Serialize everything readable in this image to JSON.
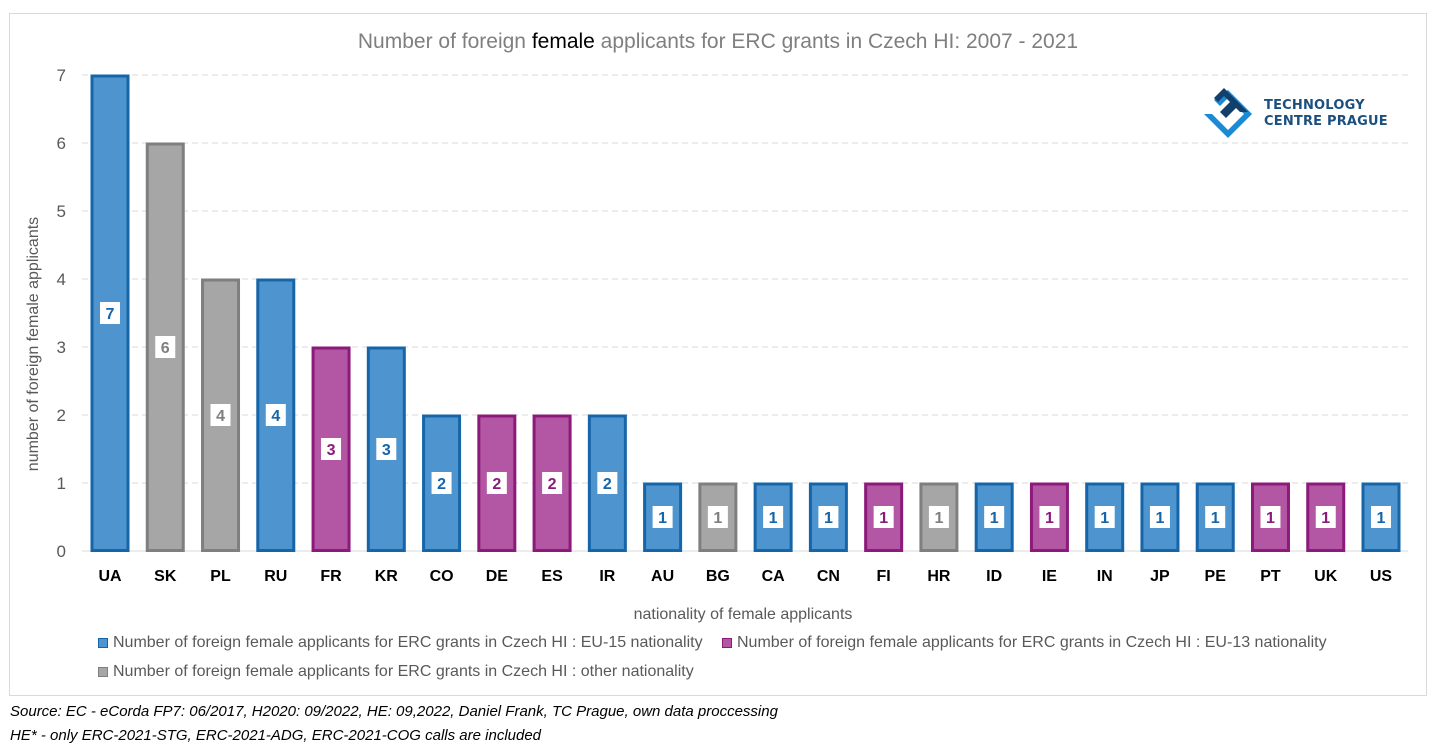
{
  "chart_data": {
    "type": "bar",
    "title_parts": [
      "Number of foreign ",
      "female",
      " applicants for ERC grants in Czech HI: 2007 - 2021"
    ],
    "xlabel": "nationality of female applicants",
    "ylabel": "number of foreign female applicants",
    "ylim": [
      0,
      7
    ],
    "yticks": [
      0,
      1,
      2,
      3,
      4,
      5,
      6,
      7
    ],
    "grid": true,
    "legend_position": "bottom",
    "categories": [
      "UA",
      "SK",
      "PL",
      "RU",
      "FR",
      "KR",
      "CO",
      "DE",
      "ES",
      "IR",
      "AU",
      "BG",
      "CA",
      "CN",
      "FI",
      "HR",
      "ID",
      "IE",
      "IN",
      "JP",
      "PE",
      "PT",
      "UK",
      "US"
    ],
    "values": [
      7,
      6,
      4,
      4,
      3,
      3,
      2,
      2,
      2,
      2,
      1,
      1,
      1,
      1,
      1,
      1,
      1,
      1,
      1,
      1,
      1,
      1,
      1,
      1
    ],
    "groups": [
      "eu15",
      "other",
      "other",
      "eu15",
      "eu13",
      "eu15",
      "eu15",
      "eu13",
      "eu13",
      "eu15",
      "eu15",
      "other",
      "eu15",
      "eu15",
      "eu13",
      "other",
      "eu15",
      "eu13",
      "eu15",
      "eu15",
      "eu15",
      "eu13",
      "eu13",
      "eu15"
    ],
    "series": [
      {
        "key": "eu15",
        "name": "Number of foreign female applicants for ERC grants in Czech HI : EU-15 nationality",
        "fill": "#4e95cf",
        "stroke": "#1565a8",
        "label_color": "#1565a8"
      },
      {
        "key": "eu13",
        "name": "Number of foreign female applicants for ERC grants in Czech HI : EU-13 nationality",
        "fill": "#b356a3",
        "stroke": "#8b1a7a",
        "label_color": "#8b1a7a"
      },
      {
        "key": "other",
        "name": "Number of foreign female applicants for ERC grants in Czech HI : other nationality",
        "fill": "#a6a6a6",
        "stroke": "#7f7f7f",
        "label_color": "#7f7f7f"
      }
    ]
  },
  "logo": {
    "line1": "TECHNOLOGY",
    "line2": "CENTRE PRAGUE"
  },
  "notes": [
    "Source: EC -  eCorda FP7: 06/2017, H2020: 09/2022, HE: 09,2022, Daniel Frank, TC Prague, own data proccessing",
    "HE* - only ERC-2021-STG, ERC-2021-ADG, ERC-2021-COG calls are included"
  ]
}
